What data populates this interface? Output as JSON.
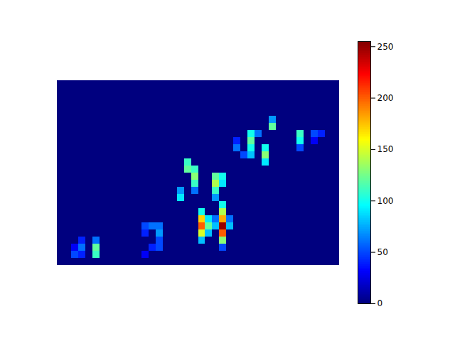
{
  "chart_data": {
    "type": "heatmap",
    "tick_labels": false,
    "z": [
      [
        0,
        0,
        0,
        0,
        0,
        0,
        0,
        0,
        0,
        0,
        0,
        0,
        0,
        0,
        0,
        0,
        0,
        0,
        0,
        0,
        0,
        0,
        0,
        0,
        0,
        0,
        0,
        0,
        0,
        0,
        0,
        0,
        0,
        0,
        0,
        0,
        0,
        0,
        0,
        0
      ],
      [
        0,
        0,
        0,
        0,
        0,
        0,
        0,
        0,
        0,
        0,
        0,
        0,
        0,
        0,
        0,
        0,
        0,
        0,
        0,
        0,
        0,
        0,
        0,
        0,
        0,
        0,
        0,
        0,
        0,
        0,
        0,
        0,
        0,
        0,
        0,
        0,
        0,
        0,
        0,
        0
      ],
      [
        0,
        0,
        0,
        0,
        0,
        0,
        0,
        0,
        0,
        0,
        0,
        0,
        0,
        0,
        0,
        0,
        0,
        0,
        0,
        0,
        0,
        0,
        0,
        0,
        0,
        0,
        0,
        0,
        0,
        0,
        0,
        0,
        0,
        0,
        0,
        0,
        0,
        0,
        0,
        0
      ],
      [
        0,
        0,
        0,
        0,
        0,
        0,
        0,
        0,
        0,
        0,
        0,
        0,
        0,
        0,
        0,
        0,
        0,
        0,
        0,
        0,
        0,
        0,
        0,
        0,
        0,
        0,
        0,
        0,
        0,
        0,
        0,
        0,
        0,
        0,
        0,
        0,
        0,
        0,
        0,
        0
      ],
      [
        0,
        0,
        0,
        0,
        0,
        0,
        0,
        0,
        0,
        0,
        0,
        0,
        0,
        0,
        0,
        0,
        0,
        0,
        0,
        0,
        0,
        0,
        0,
        0,
        0,
        0,
        0,
        0,
        0,
        0,
        0,
        0,
        0,
        0,
        0,
        0,
        0,
        0,
        0,
        0
      ],
      [
        0,
        0,
        0,
        0,
        0,
        0,
        0,
        0,
        0,
        0,
        0,
        0,
        0,
        0,
        0,
        0,
        0,
        0,
        0,
        0,
        0,
        0,
        0,
        0,
        0,
        0,
        0,
        0,
        0,
        0,
        70,
        0,
        0,
        0,
        0,
        0,
        0,
        0,
        0,
        0
      ],
      [
        0,
        0,
        0,
        0,
        0,
        0,
        0,
        0,
        0,
        0,
        0,
        0,
        0,
        0,
        0,
        0,
        0,
        0,
        0,
        0,
        0,
        0,
        0,
        0,
        0,
        0,
        0,
        0,
        0,
        0,
        120,
        0,
        0,
        0,
        0,
        0,
        0,
        0,
        0,
        0
      ],
      [
        0,
        0,
        0,
        0,
        0,
        0,
        0,
        0,
        0,
        0,
        0,
        0,
        0,
        0,
        0,
        0,
        0,
        0,
        0,
        0,
        0,
        0,
        0,
        0,
        0,
        0,
        0,
        100,
        60,
        0,
        0,
        0,
        0,
        0,
        110,
        0,
        50,
        40,
        0,
        0
      ],
      [
        0,
        0,
        0,
        0,
        0,
        0,
        0,
        0,
        0,
        0,
        0,
        0,
        0,
        0,
        0,
        0,
        0,
        0,
        0,
        0,
        0,
        0,
        0,
        0,
        0,
        40,
        0,
        120,
        0,
        0,
        0,
        0,
        0,
        0,
        100,
        0,
        30,
        0,
        0,
        0
      ],
      [
        0,
        0,
        0,
        0,
        0,
        0,
        0,
        0,
        0,
        0,
        0,
        0,
        0,
        0,
        0,
        0,
        0,
        0,
        0,
        0,
        0,
        0,
        0,
        0,
        0,
        60,
        0,
        100,
        0,
        100,
        0,
        0,
        0,
        0,
        50,
        0,
        0,
        0,
        0,
        0
      ],
      [
        0,
        0,
        0,
        0,
        0,
        0,
        0,
        0,
        0,
        0,
        0,
        0,
        0,
        0,
        0,
        0,
        0,
        0,
        0,
        0,
        0,
        0,
        0,
        0,
        0,
        0,
        50,
        80,
        0,
        130,
        0,
        0,
        0,
        0,
        0,
        0,
        0,
        0,
        0,
        0
      ],
      [
        0,
        0,
        0,
        0,
        0,
        0,
        0,
        0,
        0,
        0,
        0,
        0,
        0,
        0,
        0,
        0,
        0,
        0,
        110,
        0,
        0,
        0,
        0,
        0,
        0,
        0,
        0,
        0,
        0,
        90,
        0,
        0,
        0,
        0,
        0,
        0,
        0,
        0,
        0,
        0
      ],
      [
        0,
        0,
        0,
        0,
        0,
        0,
        0,
        0,
        0,
        0,
        0,
        0,
        0,
        0,
        0,
        0,
        0,
        0,
        120,
        110,
        0,
        0,
        0,
        0,
        0,
        0,
        0,
        0,
        0,
        0,
        0,
        0,
        0,
        0,
        0,
        0,
        0,
        0,
        0,
        0
      ],
      [
        0,
        0,
        0,
        0,
        0,
        0,
        0,
        0,
        0,
        0,
        0,
        0,
        0,
        0,
        0,
        0,
        0,
        0,
        0,
        130,
        0,
        0,
        120,
        100,
        0,
        0,
        0,
        0,
        0,
        0,
        0,
        0,
        0,
        0,
        0,
        0,
        0,
        0,
        0,
        0
      ],
      [
        0,
        0,
        0,
        0,
        0,
        0,
        0,
        0,
        0,
        0,
        0,
        0,
        0,
        0,
        0,
        0,
        0,
        0,
        0,
        110,
        0,
        0,
        140,
        90,
        0,
        0,
        0,
        0,
        0,
        0,
        0,
        0,
        0,
        0,
        0,
        0,
        0,
        0,
        0,
        0
      ],
      [
        0,
        0,
        0,
        0,
        0,
        0,
        0,
        0,
        0,
        0,
        0,
        0,
        0,
        0,
        0,
        0,
        0,
        70,
        0,
        60,
        0,
        0,
        110,
        0,
        0,
        0,
        0,
        0,
        0,
        0,
        0,
        0,
        0,
        0,
        0,
        0,
        0,
        0,
        0,
        0
      ],
      [
        0,
        0,
        0,
        0,
        0,
        0,
        0,
        0,
        0,
        0,
        0,
        0,
        0,
        0,
        0,
        0,
        0,
        90,
        0,
        0,
        0,
        0,
        70,
        0,
        0,
        0,
        0,
        0,
        0,
        0,
        0,
        0,
        0,
        0,
        0,
        0,
        0,
        0,
        0,
        0
      ],
      [
        0,
        0,
        0,
        0,
        0,
        0,
        0,
        0,
        0,
        0,
        0,
        0,
        0,
        0,
        0,
        0,
        0,
        0,
        0,
        0,
        0,
        0,
        0,
        100,
        0,
        0,
        0,
        0,
        0,
        0,
        0,
        0,
        0,
        0,
        0,
        0,
        0,
        0,
        0,
        0
      ],
      [
        0,
        0,
        0,
        0,
        0,
        0,
        0,
        0,
        0,
        0,
        0,
        0,
        0,
        0,
        0,
        0,
        0,
        0,
        0,
        0,
        100,
        0,
        0,
        140,
        0,
        0,
        0,
        0,
        0,
        0,
        0,
        0,
        0,
        0,
        0,
        0,
        0,
        0,
        0,
        0
      ],
      [
        0,
        0,
        0,
        0,
        0,
        0,
        0,
        0,
        0,
        0,
        0,
        0,
        0,
        0,
        0,
        0,
        0,
        0,
        0,
        0,
        170,
        90,
        60,
        180,
        60,
        0,
        0,
        0,
        0,
        0,
        0,
        0,
        0,
        0,
        0,
        0,
        0,
        0,
        0,
        0
      ],
      [
        0,
        0,
        0,
        0,
        0,
        0,
        0,
        0,
        0,
        0,
        0,
        0,
        50,
        60,
        60,
        0,
        0,
        0,
        0,
        0,
        200,
        120,
        80,
        250,
        80,
        0,
        0,
        0,
        0,
        0,
        0,
        0,
        0,
        0,
        0,
        0,
        0,
        0,
        0,
        0
      ],
      [
        0,
        0,
        0,
        0,
        0,
        0,
        0,
        0,
        0,
        0,
        0,
        0,
        40,
        0,
        70,
        0,
        0,
        0,
        0,
        0,
        150,
        80,
        0,
        200,
        0,
        0,
        0,
        0,
        0,
        0,
        0,
        0,
        0,
        0,
        0,
        0,
        0,
        0,
        0,
        0
      ],
      [
        0,
        0,
        0,
        40,
        0,
        60,
        0,
        0,
        0,
        0,
        0,
        0,
        0,
        0,
        50,
        0,
        0,
        0,
        0,
        0,
        80,
        0,
        0,
        130,
        0,
        0,
        0,
        0,
        0,
        0,
        0,
        0,
        0,
        0,
        0,
        0,
        0,
        0,
        0,
        0
      ],
      [
        0,
        0,
        30,
        60,
        0,
        120,
        0,
        0,
        0,
        0,
        0,
        0,
        0,
        40,
        50,
        0,
        0,
        0,
        0,
        0,
        0,
        0,
        0,
        50,
        0,
        0,
        0,
        0,
        0,
        0,
        0,
        0,
        0,
        0,
        0,
        0,
        0,
        0,
        0,
        0
      ],
      [
        0,
        0,
        50,
        40,
        0,
        110,
        0,
        0,
        0,
        0,
        0,
        0,
        30,
        0,
        0,
        0,
        0,
        0,
        0,
        0,
        0,
        0,
        0,
        0,
        0,
        0,
        0,
        0,
        0,
        0,
        0,
        0,
        0,
        0,
        0,
        0,
        0,
        0,
        0,
        0
      ],
      [
        0,
        0,
        0,
        0,
        0,
        0,
        0,
        0,
        0,
        0,
        0,
        0,
        0,
        0,
        0,
        0,
        0,
        0,
        0,
        0,
        0,
        0,
        0,
        0,
        0,
        0,
        0,
        0,
        0,
        0,
        0,
        0,
        0,
        0,
        0,
        0,
        0,
        0,
        0,
        0
      ]
    ],
    "colorbar": {
      "range": [
        0,
        255
      ],
      "ticks": [
        0,
        50,
        100,
        150,
        200,
        250
      ]
    }
  }
}
